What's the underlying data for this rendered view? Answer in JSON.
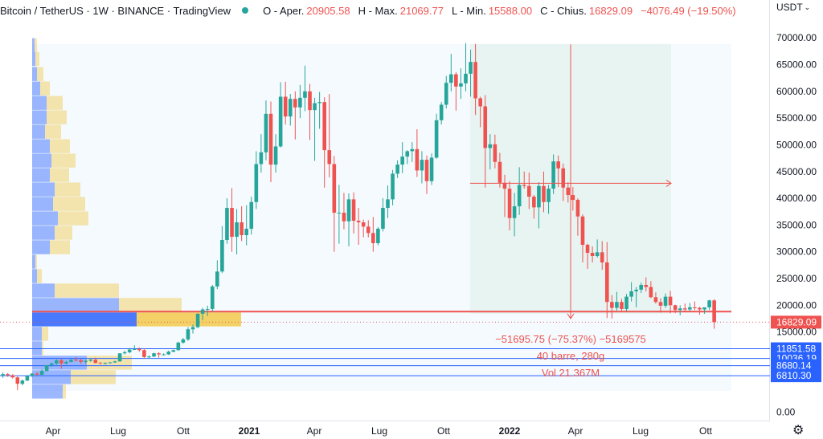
{
  "header": {
    "title": "Bitcoin / TetherUS · 1W · BINANCE · TradingView",
    "status_color": "#26a69a",
    "ohlc": [
      {
        "label": "O - Aper.",
        "value": "20905.58"
      },
      {
        "label": "H - Max.",
        "value": "21069.77"
      },
      {
        "label": "L - Min.",
        "value": "15588.00"
      },
      {
        "label": "C - Chius.",
        "value": "16829.09"
      }
    ],
    "change": "−4076.49 (−19.50%)"
  },
  "currency": {
    "label": "USDT",
    "icon": "chevron-down-icon"
  },
  "settings_icon": "gear-icon",
  "colors": {
    "up": "#26a69a",
    "down": "#ef5350",
    "hline": "#2962ff",
    "vp_blue": "#2962ff",
    "vp_yellow": "#f2c94c"
  },
  "chart_data": {
    "type": "candlestick",
    "price_axis": {
      "range": [
        0,
        70000
      ],
      "ticks": [
        "70000.00",
        "65000.00",
        "60000.00",
        "55000.00",
        "50000.00",
        "45000.00",
        "40000.00",
        "35000.00",
        "30000.00",
        "25000.00",
        "20000.00",
        "15000.00",
        "0.00"
      ]
    },
    "time_axis": {
      "ticks": [
        "Apr",
        "Lug",
        "Ott",
        "2021",
        "Apr",
        "Lug",
        "Ott",
        "2022",
        "Apr",
        "Lug",
        "Ott"
      ],
      "bold": [
        "2021",
        "2022"
      ]
    },
    "ohlc_approx": [
      [
        6800,
        7400,
        6400,
        7100
      ],
      [
        7100,
        7300,
        6600,
        6900
      ],
      [
        6900,
        7100,
        6300,
        6500
      ],
      [
        6500,
        6700,
        4100,
        5300
      ],
      [
        5300,
        6100,
        5000,
        5900
      ],
      [
        5900,
        6900,
        5800,
        6800
      ],
      [
        6800,
        7300,
        6500,
        7200
      ],
      [
        7200,
        7500,
        6900,
        7000
      ],
      [
        7000,
        8000,
        6900,
        7700
      ],
      [
        7700,
        8400,
        7600,
        8800
      ],
      [
        8800,
        9300,
        8500,
        9100
      ],
      [
        9100,
        9900,
        8600,
        9700
      ],
      [
        9700,
        10000,
        8100,
        9100
      ],
      [
        9100,
        9600,
        8900,
        9400
      ],
      [
        9400,
        9900,
        9300,
        9800
      ],
      [
        9800,
        10300,
        9500,
        9700
      ],
      [
        9700,
        10000,
        9000,
        9400
      ],
      [
        9400,
        9800,
        9000,
        9600
      ],
      [
        9600,
        10100,
        9400,
        9800
      ],
      [
        9800,
        10200,
        9100,
        9200
      ],
      [
        9200,
        9400,
        9000,
        9100
      ],
      [
        9100,
        9300,
        8900,
        9200
      ],
      [
        9200,
        9400,
        9100,
        9300
      ],
      [
        9300,
        9600,
        9200,
        9500
      ],
      [
        9500,
        11000,
        9400,
        11000
      ],
      [
        11000,
        11500,
        10800,
        11200
      ],
      [
        11200,
        12000,
        11000,
        11700
      ],
      [
        11700,
        12500,
        11600,
        11800
      ],
      [
        11800,
        12100,
        11300,
        11600
      ],
      [
        11600,
        11900,
        10000,
        10300
      ],
      [
        10300,
        10600,
        10000,
        10400
      ],
      [
        10400,
        11100,
        10300,
        11000
      ],
      [
        11000,
        11200,
        10200,
        10800
      ],
      [
        10800,
        11000,
        10600,
        10800
      ],
      [
        10800,
        11500,
        10700,
        11300
      ],
      [
        11300,
        11700,
        11200,
        11600
      ],
      [
        11600,
        13200,
        11500,
        13000
      ],
      [
        13000,
        13900,
        12800,
        13600
      ],
      [
        13600,
        15900,
        13300,
        15500
      ],
      [
        15500,
        16400,
        14700,
        15900
      ],
      [
        15900,
        18500,
        15700,
        18400
      ],
      [
        18400,
        19500,
        17200,
        19200
      ],
      [
        19200,
        19900,
        18000,
        19300
      ],
      [
        19300,
        23800,
        18800,
        23500
      ],
      [
        23500,
        28400,
        23000,
        26300
      ],
      [
        26300,
        34800,
        26000,
        32200
      ],
      [
        32200,
        40000,
        31500,
        38200
      ],
      [
        38200,
        41900,
        30000,
        32800
      ],
      [
        32800,
        38000,
        29500,
        35500
      ],
      [
        35500,
        38500,
        32000,
        33100
      ],
      [
        33100,
        38700,
        31200,
        34300
      ],
      [
        34300,
        40300,
        33200,
        39300
      ],
      [
        39300,
        48800,
        38000,
        46400
      ],
      [
        46400,
        52000,
        44800,
        48600
      ],
      [
        48600,
        58300,
        47100,
        55800
      ],
      [
        55800,
        58100,
        43000,
        46300
      ],
      [
        46300,
        52000,
        44800,
        49700
      ],
      [
        49700,
        61700,
        49500,
        59000
      ],
      [
        59000,
        61800,
        53800,
        55300
      ],
      [
        55300,
        59500,
        53600,
        58600
      ],
      [
        58600,
        60000,
        51000,
        57000
      ],
      [
        57000,
        61200,
        55000,
        58800
      ],
      [
        58800,
        64800,
        56300,
        60000
      ],
      [
        60000,
        61400,
        50900,
        56500
      ],
      [
        56500,
        58800,
        47000,
        57800
      ],
      [
        57800,
        59900,
        53000,
        58000
      ],
      [
        58000,
        58900,
        42000,
        49000
      ],
      [
        49000,
        59500,
        43900,
        46400
      ],
      [
        46400,
        47900,
        30000,
        37300
      ],
      [
        37300,
        42500,
        31500,
        37300
      ],
      [
        37300,
        41000,
        34200,
        35700
      ],
      [
        35700,
        40900,
        31000,
        39800
      ],
      [
        39800,
        41100,
        33400,
        35800
      ],
      [
        35800,
        38200,
        31300,
        35500
      ],
      [
        35500,
        36000,
        32700,
        34700
      ],
      [
        34700,
        35900,
        32700,
        33500
      ],
      [
        33500,
        36500,
        30000,
        31600
      ],
      [
        31600,
        34600,
        31200,
        34300
      ],
      [
        34300,
        40000,
        33800,
        38200
      ],
      [
        38200,
        42400,
        36300,
        39800
      ],
      [
        39800,
        45300,
        38700,
        44600
      ],
      [
        44600,
        47100,
        43800,
        46300
      ],
      [
        46300,
        50500,
        44700,
        47800
      ],
      [
        47800,
        49000,
        46400,
        48800
      ],
      [
        48800,
        50500,
        46800,
        49200
      ],
      [
        49200,
        52900,
        44000,
        45200
      ],
      [
        45200,
        48800,
        42800,
        47200
      ],
      [
        47200,
        48000,
        40800,
        43200
      ],
      [
        43200,
        48400,
        42500,
        47600
      ],
      [
        47600,
        55800,
        47400,
        54600
      ],
      [
        54600,
        58000,
        53800,
        57500
      ],
      [
        57500,
        62900,
        56800,
        61600
      ],
      [
        61600,
        67000,
        60000,
        63200
      ],
      [
        63200,
        63600,
        56400,
        60900
      ],
      [
        60900,
        64300,
        58600,
        61500
      ],
      [
        61500,
        69000,
        60000,
        63300
      ],
      [
        63300,
        67800,
        59000,
        65500
      ],
      [
        65500,
        68900,
        55600,
        58700
      ],
      [
        58700,
        59000,
        53300,
        57200
      ],
      [
        57200,
        59300,
        42000,
        49400
      ],
      [
        49400,
        52000,
        45400,
        50100
      ],
      [
        50100,
        51900,
        45600,
        46800
      ],
      [
        46800,
        48500,
        42000,
        42900
      ],
      [
        42900,
        44400,
        36500,
        41800
      ],
      [
        41800,
        43200,
        34000,
        36300
      ],
      [
        36300,
        41000,
        32900,
        38500
      ],
      [
        38500,
        45800,
        36900,
        42500
      ],
      [
        42500,
        45000,
        41800,
        42300
      ],
      [
        42300,
        44800,
        38000,
        40300
      ],
      [
        40300,
        40600,
        36200,
        38300
      ],
      [
        38300,
        43000,
        34400,
        42300
      ],
      [
        42300,
        45000,
        37400,
        39300
      ],
      [
        39300,
        42500,
        37100,
        41800
      ],
      [
        41800,
        48200,
        40800,
        46900
      ],
      [
        46900,
        48000,
        42100,
        45600
      ],
      [
        45600,
        46500,
        39500,
        42000
      ],
      [
        42000,
        43000,
        39200,
        40600
      ],
      [
        40600,
        42100,
        37700,
        39700
      ],
      [
        39700,
        40000,
        33000,
        36600
      ],
      [
        36600,
        37000,
        28000,
        31300
      ],
      [
        31300,
        31500,
        26800,
        29800
      ],
      [
        29800,
        31000,
        28000,
        29200
      ],
      [
        29200,
        32300,
        28900,
        29900
      ],
      [
        29900,
        32000,
        26600,
        28000
      ],
      [
        28000,
        31800,
        17600,
        20600
      ],
      [
        20600,
        21900,
        17500,
        19500
      ],
      [
        19500,
        22500,
        19000,
        20600
      ],
      [
        20600,
        21200,
        18800,
        19300
      ],
      [
        19300,
        22100,
        18900,
        21600
      ],
      [
        21600,
        24300,
        20700,
        22600
      ],
      [
        22600,
        23400,
        19600,
        22900
      ],
      [
        22900,
        24200,
        22300,
        23800
      ],
      [
        23800,
        25200,
        22600,
        23400
      ],
      [
        23400,
        24500,
        21300,
        21500
      ],
      [
        21500,
        22400,
        20300,
        20600
      ],
      [
        20600,
        21300,
        18600,
        19900
      ],
      [
        19900,
        22200,
        19500,
        21600
      ],
      [
        21600,
        22700,
        18500,
        20000
      ],
      [
        20000,
        20100,
        18500,
        19100
      ],
      [
        19100,
        20000,
        18100,
        19400
      ],
      [
        19400,
        20300,
        18700,
        19200
      ],
      [
        19200,
        20400,
        18900,
        19600
      ],
      [
        19600,
        20700,
        19100,
        19500
      ],
      [
        19500,
        19700,
        18200,
        19200
      ],
      [
        19200,
        19500,
        18400,
        19600
      ],
      [
        19600,
        21000,
        19100,
        20900
      ],
      [
        20900,
        21100,
        15600,
        16829
      ]
    ],
    "volume_profile": [
      {
        "price": 68600,
        "blue": 3,
        "yellow": 3
      },
      {
        "price": 66000,
        "blue": 4,
        "yellow": 5
      },
      {
        "price": 63200,
        "blue": 6,
        "yellow": 8
      },
      {
        "price": 60500,
        "blue": 10,
        "yellow": 12
      },
      {
        "price": 57800,
        "blue": 18,
        "yellow": 20
      },
      {
        "price": 55100,
        "blue": 18,
        "yellow": 25
      },
      {
        "price": 52400,
        "blue": 16,
        "yellow": 20
      },
      {
        "price": 49700,
        "blue": 22,
        "yellow": 25
      },
      {
        "price": 47000,
        "blue": 24,
        "yellow": 30
      },
      {
        "price": 44300,
        "blue": 22,
        "yellow": 24
      },
      {
        "price": 41600,
        "blue": 28,
        "yellow": 32
      },
      {
        "price": 38900,
        "blue": 26,
        "yellow": 40
      },
      {
        "price": 36200,
        "blue": 32,
        "yellow": 38
      },
      {
        "price": 33500,
        "blue": 28,
        "yellow": 22
      },
      {
        "price": 30800,
        "blue": 22,
        "yellow": 25
      },
      {
        "price": 28100,
        "blue": 4,
        "yellow": 2
      },
      {
        "price": 25400,
        "blue": 6,
        "yellow": 6
      },
      {
        "price": 22700,
        "blue": 28,
        "yellow": 80
      },
      {
        "price": 20000,
        "blue": 108,
        "yellow": 78
      },
      {
        "price": 17300,
        "blue": 130,
        "yellow": 130
      },
      {
        "price": 14600,
        "blue": 12,
        "yellow": 8
      },
      {
        "price": 11900,
        "blue": 12,
        "yellow": 2
      },
      {
        "price": 9200,
        "blue": 68,
        "yellow": 56
      },
      {
        "price": 6500,
        "blue": 48,
        "yellow": 56
      },
      {
        "price": 3800,
        "blue": 38,
        "yellow": 4
      }
    ],
    "horizontal_lines": [
      {
        "price": 11851.58,
        "label": "11851.58"
      },
      {
        "price": 10036.19,
        "label": "10036.19"
      },
      {
        "price": 8680.14,
        "label": "8680.14"
      },
      {
        "price": 6810.3,
        "label": "6810.30"
      }
    ],
    "support_line": {
      "price": 18800
    },
    "current_price": {
      "price": 16829.09,
      "label": "16829.09"
    },
    "measure": {
      "from_price": 68800,
      "to_price": 17500,
      "horizontal_price": 42800,
      "texts": [
        "−51695.75 (−75.37%) −5169575",
        "40 barre, 280g",
        "Vol 21.367M"
      ]
    }
  }
}
